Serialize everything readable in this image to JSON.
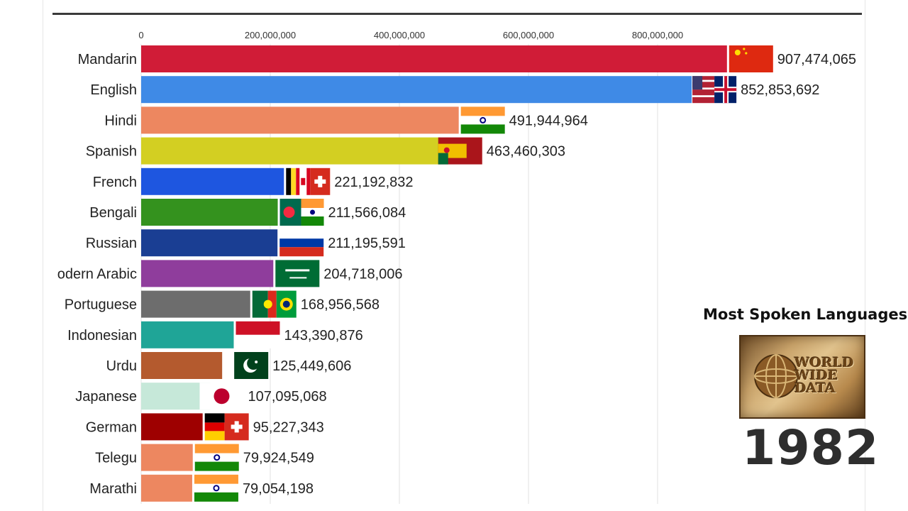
{
  "chart_data": {
    "type": "bar",
    "orientation": "horizontal",
    "categories": [
      "Mandarin",
      "English",
      "Hindi",
      "Spanish",
      "French",
      "Bengali",
      "Russian",
      "odern Arabic",
      "Portuguese",
      "Indonesian",
      "Urdu",
      "Japanese",
      "German",
      "Telegu",
      "Marathi"
    ],
    "values": [
      907474065,
      852853692,
      491944964,
      463460303,
      221192832,
      211566084,
      211195591,
      204718006,
      168956568,
      143390876,
      125449606,
      107095068,
      95227343,
      79924549,
      79054198
    ],
    "value_labels": [
      "907,474,065",
      "852,853,692",
      "491,944,964",
      "463,460,303",
      "221,192,832",
      "211,566,084",
      "211,195,591",
      "204,718,006",
      "168,956,568",
      "143,390,876",
      "125,449,606",
      "107,095,068",
      "95,227,343",
      "79,924,549",
      "79,054,198"
    ],
    "bar_colors": [
      "#d01c37",
      "#3f8ae6",
      "#ed8760",
      "#d3cf22",
      "#1e56e0",
      "#34921e",
      "#1a3e93",
      "#8f3d9c",
      "#6d6d6d",
      "#1fa597",
      "#b45a2e",
      "#c6e8d9",
      "#9e0000",
      "#ed8760",
      "#ed8760"
    ],
    "flags": [
      "china",
      "uk-usa",
      "india",
      "spain-portugal",
      "belgium-canada-switzerland",
      "bangladesh-india",
      "russia",
      "saudi-arabia",
      "portugal-brazil",
      "indonesia",
      "pakistan",
      "japan",
      "germany-switzerland",
      "india",
      "india"
    ],
    "x_ticks": [
      0,
      200000000,
      400000000,
      600000000,
      800000000
    ],
    "x_tick_labels": [
      "0",
      "200,000,000",
      "400,000,000",
      "600,000,000",
      "800,000,000"
    ],
    "xlim": [
      0,
      1000000000
    ],
    "axis_position": "top",
    "grid": true,
    "title": "Most Spoken Languages",
    "year": "1982"
  },
  "side_panel": {
    "title": "Most Spoken Languages",
    "logo_text": [
      "WORLD",
      "WIDE",
      "DATA"
    ],
    "year": "1982"
  }
}
